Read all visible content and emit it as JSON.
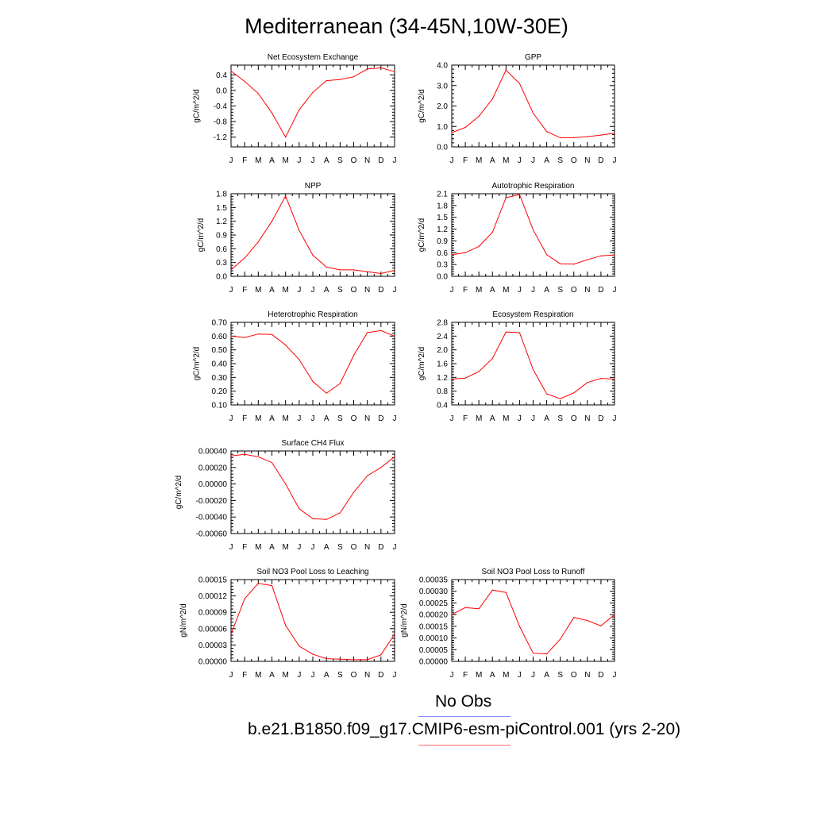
{
  "title": "Mediterranean (34-45N,10W-30E)",
  "legend": {
    "obs_label": "No Obs",
    "obs_color": "#8a8aff",
    "case_label": "b.e21.B1850.f09_g17.CMIP6-esm-piControl.001 (yrs 2-20)",
    "case_color": "#ff7070"
  },
  "line_color": "#ff0000",
  "chart_data": [
    {
      "type": "line",
      "title": "Net Ecosystem Exchange",
      "ylabel": "gC/m^2/d",
      "x": [
        "J",
        "F",
        "M",
        "A",
        "M",
        "J",
        "J",
        "A",
        "S",
        "O",
        "N",
        "D",
        "J"
      ],
      "yticks": [
        "-1.2",
        "-0.8",
        "-0.4",
        "0.0",
        "0.4"
      ],
      "ylim": [
        -1.45,
        0.65
      ],
      "values": [
        0.5,
        0.23,
        -0.08,
        -0.58,
        -1.2,
        -0.5,
        -0.05,
        0.25,
        0.28,
        0.35,
        0.55,
        0.58,
        0.48
      ]
    },
    {
      "type": "line",
      "title": "GPP",
      "ylabel": "gC/m^2/d",
      "x": [
        "J",
        "F",
        "M",
        "A",
        "M",
        "J",
        "J",
        "A",
        "S",
        "O",
        "N",
        "D",
        "J"
      ],
      "yticks": [
        "0.0",
        "1.0",
        "2.0",
        "3.0",
        "4.0"
      ],
      "ylim": [
        0,
        4
      ],
      "values": [
        0.7,
        0.95,
        1.5,
        2.35,
        3.75,
        3.1,
        1.65,
        0.75,
        0.45,
        0.45,
        0.5,
        0.58,
        0.67
      ]
    },
    {
      "type": "line",
      "title": "NPP",
      "ylabel": "gC/m^2/d",
      "x": [
        "J",
        "F",
        "M",
        "A",
        "M",
        "J",
        "J",
        "A",
        "S",
        "O",
        "N",
        "D",
        "J"
      ],
      "yticks": [
        "0.0",
        "0.3",
        "0.6",
        "0.9",
        "1.2",
        "1.5",
        "1.8"
      ],
      "ylim": [
        0,
        1.8
      ],
      "values": [
        0.14,
        0.4,
        0.75,
        1.2,
        1.75,
        1.0,
        0.46,
        0.2,
        0.14,
        0.14,
        0.1,
        0.06,
        0.13
      ]
    },
    {
      "type": "line",
      "title": "Autotrophic Respiration",
      "ylabel": "gC/m^2/d",
      "x": [
        "J",
        "F",
        "M",
        "A",
        "M",
        "J",
        "J",
        "A",
        "S",
        "O",
        "N",
        "D",
        "J"
      ],
      "yticks": [
        "0.0",
        "0.3",
        "0.6",
        "0.9",
        "1.2",
        "1.5",
        "1.8",
        "2.1"
      ],
      "ylim": [
        0,
        2.1
      ],
      "values": [
        0.55,
        0.6,
        0.76,
        1.12,
        2.0,
        2.08,
        1.18,
        0.55,
        0.32,
        0.31,
        0.42,
        0.52,
        0.54
      ]
    },
    {
      "type": "line",
      "title": "Heterotrophic Respiration",
      "ylabel": "gC/m^2/d",
      "x": [
        "J",
        "F",
        "M",
        "A",
        "M",
        "J",
        "J",
        "A",
        "S",
        "O",
        "N",
        "D",
        "J"
      ],
      "yticks": [
        "0.10",
        "0.20",
        "0.30",
        "0.40",
        "0.50",
        "0.60",
        "0.70"
      ],
      "ylim": [
        0.1,
        0.7
      ],
      "values": [
        0.6,
        0.59,
        0.615,
        0.612,
        0.535,
        0.43,
        0.27,
        0.185,
        0.255,
        0.46,
        0.625,
        0.64,
        0.6
      ]
    },
    {
      "type": "line",
      "title": "Ecosystem Respiration",
      "ylabel": "gC/m^2/d",
      "x": [
        "J",
        "F",
        "M",
        "A",
        "M",
        "J",
        "J",
        "A",
        "S",
        "O",
        "N",
        "D",
        "J"
      ],
      "yticks": [
        "0.4",
        "0.8",
        "1.2",
        "1.6",
        "2.0",
        "2.4",
        "2.8"
      ],
      "ylim": [
        0.4,
        2.8
      ],
      "values": [
        1.15,
        1.18,
        1.37,
        1.75,
        2.52,
        2.5,
        1.43,
        0.72,
        0.58,
        0.75,
        1.05,
        1.17,
        1.15
      ]
    },
    {
      "type": "line",
      "title": "Surface CH4 Flux",
      "ylabel": "gC/m^2/d",
      "x": [
        "J",
        "F",
        "M",
        "A",
        "M",
        "J",
        "J",
        "A",
        "S",
        "O",
        "N",
        "D",
        "J"
      ],
      "yticks": [
        "-0.00060",
        "-0.00040",
        "-0.00020",
        "0.00000",
        "0.00020",
        "0.00040"
      ],
      "ylim": [
        -0.0006,
        0.0004
      ],
      "values": [
        0.00034,
        0.00036,
        0.00033,
        0.00026,
        0.0,
        -0.0003,
        -0.00042,
        -0.00043,
        -0.00035,
        -0.0001,
        0.0001,
        0.0002,
        0.00033
      ]
    },
    {
      "type": "line",
      "title": "Soil NO3 Pool Loss to Leaching",
      "ylabel": "gN/m^2/d",
      "x": [
        "J",
        "F",
        "M",
        "A",
        "M",
        "J",
        "J",
        "A",
        "S",
        "O",
        "N",
        "D",
        "J"
      ],
      "yticks": [
        "0.00000",
        "0.00003",
        "0.00006",
        "0.00009",
        "0.00012",
        "0.00015"
      ],
      "ylim": [
        0,
        0.00015
      ],
      "values": [
        5e-05,
        0.000115,
        0.000143,
        0.000139,
        6.6e-05,
        2.8e-05,
        1.3e-05,
        5e-06,
        4e-06,
        3e-06,
        3e-06,
        1.2e-05,
        5e-05
      ]
    },
    {
      "type": "line",
      "title": "Soil NO3 Pool Loss to Runoff",
      "ylabel": "gN/m^2/d",
      "x": [
        "J",
        "F",
        "M",
        "A",
        "M",
        "J",
        "J",
        "A",
        "S",
        "O",
        "N",
        "D",
        "J"
      ],
      "yticks": [
        "0.00000",
        "0.00005",
        "0.00010",
        "0.00015",
        "0.00020",
        "0.00025",
        "0.00030",
        "0.00035"
      ],
      "ylim": [
        0,
        0.00035
      ],
      "values": [
        0.0002,
        0.00023,
        0.000225,
        0.000305,
        0.000295,
        0.00015,
        3.5e-05,
        3.2e-05,
        9.5e-05,
        0.000188,
        0.000175,
        0.000152,
        0.0002
      ]
    }
  ]
}
